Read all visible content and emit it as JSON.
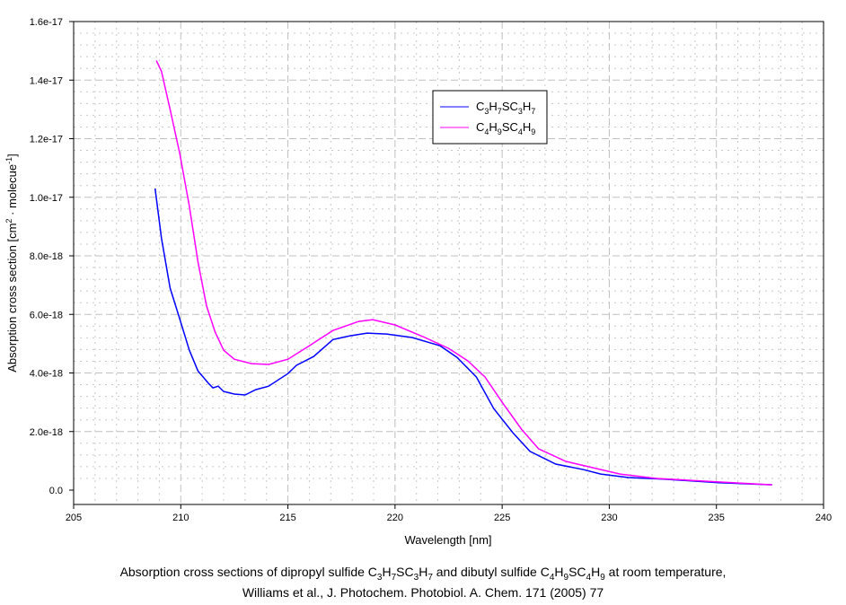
{
  "chart_data": {
    "type": "line",
    "xlabel": "Wavelength [nm]",
    "ylabel_parts": {
      "main": "Absorption cross section [cm",
      "sup1": "2",
      "mid": " · molecue",
      "sup2": "-1",
      "end": "]"
    },
    "xlim": [
      205,
      240
    ],
    "ylim": [
      0,
      1.6e-17
    ],
    "xticks": [
      205,
      210,
      215,
      220,
      225,
      230,
      235,
      240
    ],
    "yticks": [
      0,
      2e-18,
      4e-18,
      6e-18,
      8e-18,
      1e-17,
      1.2e-17,
      1.4e-17,
      1.6e-17
    ],
    "ytick_labels": [
      "0.0",
      "2.0e-18",
      "4.0e-18",
      "6.0e-18",
      "8.0e-18",
      "1.0e-17",
      "1.2e-17",
      "1.4e-17",
      "1.6e-17"
    ],
    "grid": true,
    "legend_placement": "top-center",
    "series": [
      {
        "name": "C3H7SC3H7",
        "legend": [
          [
            "C",
            ""
          ],
          [
            "3",
            "sub"
          ],
          [
            "H",
            ""
          ],
          [
            "7",
            "sub"
          ],
          [
            "SC",
            ""
          ],
          [
            "3",
            "sub"
          ],
          [
            "H",
            ""
          ],
          [
            "7",
            "sub"
          ]
        ],
        "color": "#0000ff",
        "x": [
          208.8,
          209.1,
          209.5,
          209.95,
          210.4,
          210.8,
          211.3,
          211.5,
          211.75,
          212.0,
          212.5,
          213.0,
          213.5,
          214.1,
          215.0,
          215.4,
          216.2,
          217.1,
          217.9,
          218.7,
          219.6,
          220.8,
          222.1,
          222.9,
          223.8,
          224.6,
          225.5,
          226.3,
          227.5,
          228.8,
          229.6,
          230.9,
          232.6,
          235.1,
          237.6
        ],
        "y": [
          1.03e-17,
          8.6e-18,
          6.9e-18,
          5.85e-18,
          4.78e-18,
          4.07e-18,
          3.64e-18,
          3.49e-18,
          3.55e-18,
          3.37e-18,
          3.28e-18,
          3.25e-18,
          3.43e-18,
          3.55e-18,
          3.98e-18,
          4.26e-18,
          4.56e-18,
          5.14e-18,
          5.27e-18,
          5.36e-18,
          5.33e-18,
          5.21e-18,
          4.93e-18,
          4.53e-18,
          3.86e-18,
          2.79e-18,
          1.96e-18,
          1.32e-18,
          8.9e-19,
          7e-19,
          5.5e-19,
          4.3e-19,
          3.7e-19,
          2.5e-19,
          1.8e-19
        ]
      },
      {
        "name": "C4H9SC4H9",
        "legend": [
          [
            "C",
            ""
          ],
          [
            "4",
            "sub"
          ],
          [
            "H",
            ""
          ],
          [
            "9",
            "sub"
          ],
          [
            "SC",
            ""
          ],
          [
            "4",
            "sub"
          ],
          [
            "H",
            ""
          ],
          [
            "9",
            "sub"
          ]
        ],
        "color": "#ff00ff",
        "x": [
          208.86,
          209.1,
          209.5,
          209.95,
          210.4,
          210.8,
          211.2,
          211.6,
          212.0,
          212.5,
          213.3,
          214.1,
          215.0,
          216.0,
          217.1,
          218.3,
          218.96,
          220.0,
          221.3,
          222.5,
          223.4,
          224.2,
          225.0,
          225.9,
          226.7,
          227.97,
          229.2,
          230.5,
          232.2,
          235.1,
          237.6
        ],
        "y": [
          1.467e-17,
          1.43e-17,
          1.3e-17,
          1.15e-17,
          9.7e-18,
          7.8e-18,
          6.3e-18,
          5.4e-18,
          4.78e-18,
          4.47e-18,
          4.32e-18,
          4.29e-18,
          4.47e-18,
          4.93e-18,
          5.45e-18,
          5.76e-18,
          5.82e-18,
          5.64e-18,
          5.24e-18,
          4.84e-18,
          4.41e-18,
          3.86e-18,
          3e-18,
          2.08e-18,
          1.41e-18,
          9.8e-19,
          7.7e-19,
          5.5e-19,
          4e-19,
          2.8e-19,
          1.8e-19
        ]
      }
    ],
    "caption": {
      "line1": [
        [
          "Absorption cross sections of dipropyl sulfide C",
          ""
        ],
        [
          "3",
          "sub"
        ],
        [
          "H",
          ""
        ],
        [
          "7",
          "sub"
        ],
        [
          "SC",
          ""
        ],
        [
          "3",
          "sub"
        ],
        [
          "H",
          ""
        ],
        [
          "7",
          "sub"
        ],
        [
          " and dibutyl sulfide C",
          ""
        ],
        [
          "4",
          "sub"
        ],
        [
          "H",
          ""
        ],
        [
          "9",
          "sub"
        ],
        [
          "SC",
          ""
        ],
        [
          "4",
          "sub"
        ],
        [
          "H",
          ""
        ],
        [
          "9",
          "sub"
        ],
        [
          " at room temperature,",
          ""
        ]
      ],
      "line2": "Williams et al., J. Photochem. Photobiol. A. Chem. 171 (2005) 77"
    }
  }
}
